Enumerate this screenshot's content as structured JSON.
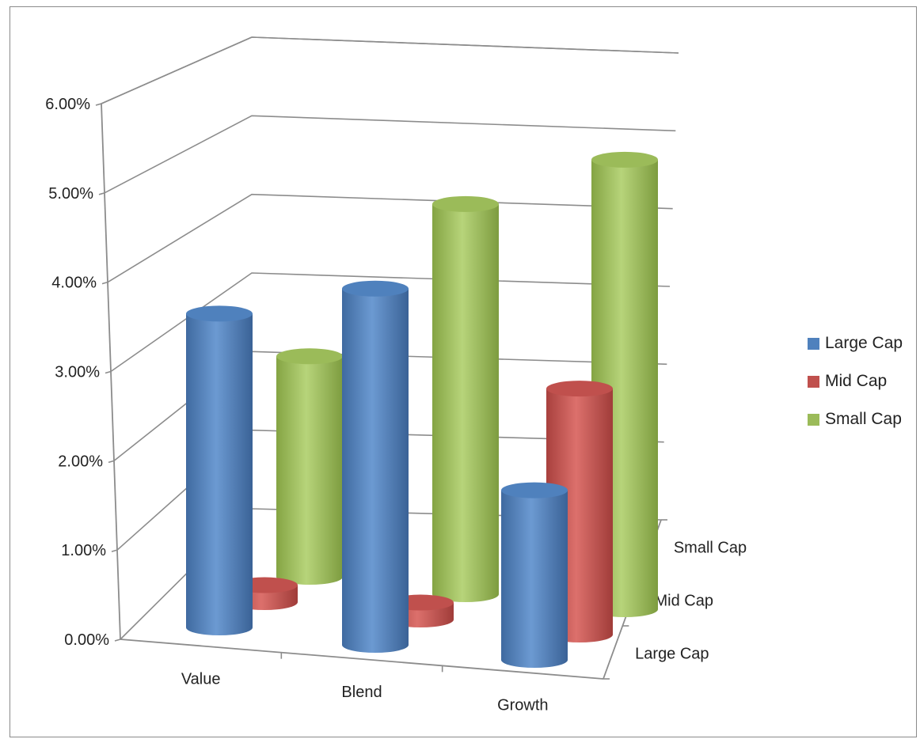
{
  "chart_data": {
    "type": "bar",
    "subtype": "3d-cylinder",
    "title": "",
    "categories": [
      "Value",
      "Blend",
      "Growth"
    ],
    "series": [
      {
        "name": "Large Cap",
        "values": [
          0.037,
          0.042,
          0.02
        ],
        "color": "#4f81bd"
      },
      {
        "name": "Mid Cap",
        "values": [
          0.002,
          0.002,
          0.029
        ],
        "color": "#c0504d"
      },
      {
        "name": "Small Cap",
        "values": [
          0.026,
          0.046,
          0.053
        ],
        "color": "#9bbb59"
      }
    ],
    "y_ticks": [
      "0.00%",
      "1.00%",
      "2.00%",
      "3.00%",
      "4.00%",
      "5.00%",
      "6.00%"
    ],
    "ylim": [
      0,
      0.06
    ],
    "depth_axis_labels": [
      "Large Cap",
      "Mid Cap",
      "Small Cap"
    ],
    "grid": true,
    "legend_position": "right"
  }
}
